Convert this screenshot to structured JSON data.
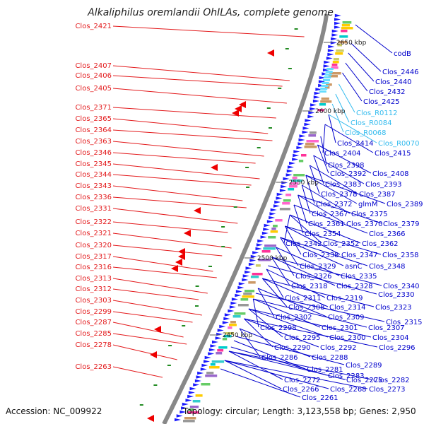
{
  "title": "Alkaliphilus oremlandii OhILAs, complete genome",
  "footer": {
    "accession": "Accession: NC_009922",
    "summary": "Topology: circular; Length: 3,123,558 bp; Genes: 2,950"
  },
  "colors": {
    "reverse_label": "#e31a1c",
    "forward_label": "#0000cc",
    "rna_label": "#33bbee",
    "backbone": "#888888",
    "forward_arrow": "#1a1aff",
    "reverse_arrow": "#ee0000",
    "tick": "#228b22"
  },
  "kbp_ticks": [
    "2650 kbp",
    "2600 kbp",
    "2550 kbp",
    "2500 kbp",
    "2450 kbp"
  ],
  "left_labels": [
    "Clos_2421",
    "Clos_2407",
    "Clos_2406",
    "Clos_2405",
    "Clos_2371",
    "Clos_2365",
    "Clos_2364",
    "Clos_2363",
    "Clos_2346",
    "Clos_2345",
    "Clos_2344",
    "Clos_2343",
    "Clos_2336",
    "Clos_2331",
    "Clos_2322",
    "Clos_2321",
    "Clos_2320",
    "Clos_2317",
    "Clos_2316",
    "Clos_2313",
    "Clos_2312",
    "Clos_2303",
    "Clos_2299",
    "Clos_2287",
    "Clos_2285",
    "Clos_2278",
    "Clos_2263"
  ],
  "right_labels": [
    {
      "t": "codB",
      "c": "f"
    },
    {
      "t": "Clos_2446",
      "c": "f"
    },
    {
      "t": "Clos_2440",
      "c": "f"
    },
    {
      "t": "Clos_2432",
      "c": "f"
    },
    {
      "t": "Clos_2425",
      "c": "f"
    },
    {
      "t": "Clos_R0112",
      "c": "r"
    },
    {
      "t": "Clos_R0084",
      "c": "r"
    },
    {
      "t": "Clos_R0068",
      "c": "r"
    },
    {
      "t": "Clos_2414",
      "c": "f"
    },
    {
      "t": "Clos_R0070",
      "c": "r"
    },
    {
      "t": "Clos_2404",
      "c": "f"
    },
    {
      "t": "Clos_2415",
      "c": "f"
    },
    {
      "t": "Clos_2398",
      "c": "f"
    },
    {
      "t": "Clos_2392",
      "c": "f"
    },
    {
      "t": "Clos_2408",
      "c": "f"
    },
    {
      "t": "Clos_2383",
      "c": "f"
    },
    {
      "t": "Clos_2393",
      "c": "f"
    },
    {
      "t": "Clos_2378",
      "c": "f"
    },
    {
      "t": "Clos_2387",
      "c": "f"
    },
    {
      "t": "Clos_2372",
      "c": "f"
    },
    {
      "t": "glmM",
      "c": "f"
    },
    {
      "t": "Clos_2389",
      "c": "f"
    },
    {
      "t": "Clos_2367",
      "c": "f"
    },
    {
      "t": "Clos_2375",
      "c": "f"
    },
    {
      "t": "Clos_2361",
      "c": "f"
    },
    {
      "t": "Clos_2370",
      "c": "f"
    },
    {
      "t": "Clos_2379",
      "c": "f"
    },
    {
      "t": "Clos_2354",
      "c": "f"
    },
    {
      "t": "Clos_2366",
      "c": "f"
    },
    {
      "t": "Clos_2342",
      "c": "f"
    },
    {
      "t": "Clos_2352",
      "c": "f"
    },
    {
      "t": "Clos_2362",
      "c": "f"
    },
    {
      "t": "Clos_2338",
      "c": "f"
    },
    {
      "t": "Clos_2347",
      "c": "f"
    },
    {
      "t": "Clos_2358",
      "c": "f"
    },
    {
      "t": "Clos_2329",
      "c": "f"
    },
    {
      "t": "asnC",
      "c": "f"
    },
    {
      "t": "Clos_2348",
      "c": "f"
    },
    {
      "t": "Clos_2326",
      "c": "f"
    },
    {
      "t": "Clos_2335",
      "c": "f"
    },
    {
      "t": "Clos_2318",
      "c": "f"
    },
    {
      "t": "Clos_2328",
      "c": "f"
    },
    {
      "t": "Clos_2340",
      "c": "f"
    },
    {
      "t": "Clos_2330",
      "c": "f"
    },
    {
      "t": "Clos_2311",
      "c": "f"
    },
    {
      "t": "Clos_2319",
      "c": "f"
    },
    {
      "t": "Clos_2308",
      "c": "f"
    },
    {
      "t": "Clos_2314",
      "c": "f"
    },
    {
      "t": "Clos_2323",
      "c": "f"
    },
    {
      "t": "Clos_2302",
      "c": "f"
    },
    {
      "t": "Clos_2309",
      "c": "f"
    },
    {
      "t": "Clos_2315",
      "c": "f"
    },
    {
      "t": "Clos_2298",
      "c": "f"
    },
    {
      "t": "Clos_2301",
      "c": "f"
    },
    {
      "t": "Clos_2307",
      "c": "f"
    },
    {
      "t": "Clos_2295",
      "c": "f"
    },
    {
      "t": "Clos_2300",
      "c": "f"
    },
    {
      "t": "Clos_2304",
      "c": "f"
    },
    {
      "t": "Clos_2290",
      "c": "f"
    },
    {
      "t": "Clos_2292",
      "c": "f"
    },
    {
      "t": "Clos_2296",
      "c": "f"
    },
    {
      "t": "Clos_2286",
      "c": "f"
    },
    {
      "t": "Clos_2288",
      "c": "f"
    },
    {
      "t": "Clos_2289",
      "c": "f"
    },
    {
      "t": "Clos_2281",
      "c": "f"
    },
    {
      "t": "Clos_2283",
      "c": "f"
    },
    {
      "t": "Clos_2272",
      "c": "f"
    },
    {
      "t": "Clos_2275",
      "c": "f"
    },
    {
      "t": "Clos_2282",
      "c": "f"
    },
    {
      "t": "Clos_2266",
      "c": "f"
    },
    {
      "t": "Clos_2268",
      "c": "f"
    },
    {
      "t": "Clos_2273",
      "c": "f"
    },
    {
      "t": "Clos_2261",
      "c": "f"
    }
  ]
}
